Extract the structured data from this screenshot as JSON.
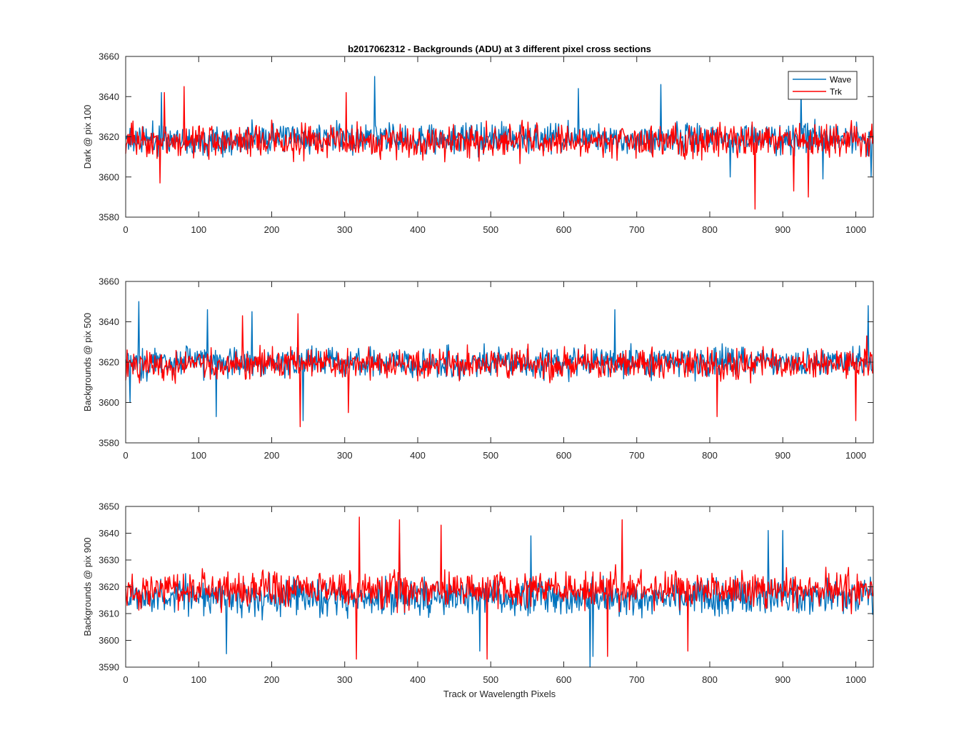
{
  "chart_data": [
    {
      "type": "line",
      "title": "b2017062312 - Backgrounds (ADU) at 3 different pixel cross sections",
      "xlabel": "",
      "ylabel": "Dark @ pix 100",
      "xlim": [
        0,
        1024
      ],
      "ylim": [
        3580,
        3660
      ],
      "xticks": [
        0,
        100,
        200,
        300,
        400,
        500,
        600,
        700,
        800,
        900,
        1000
      ],
      "yticks": [
        3580,
        3600,
        3620,
        3640,
        3660
      ],
      "grid": false,
      "legend": "top-right",
      "n_points": 1024,
      "series": [
        {
          "name": "Wave",
          "color": "#0072BD",
          "mean": 3619,
          "amplitude": 11,
          "seed": 11,
          "peaks": [
            [
              341,
              3650
            ],
            [
              733,
              3646
            ],
            [
              925,
              3645
            ],
            [
              620,
              3644
            ],
            [
              49,
              3642
            ]
          ],
          "dips": [
            [
              828,
              3600
            ],
            [
              955,
              3599
            ],
            [
              1021,
              3600
            ]
          ]
        },
        {
          "name": "Trk",
          "color": "#FF0000",
          "mean": 3618,
          "amplitude": 12,
          "seed": 23,
          "peaks": [
            [
              80,
              3645
            ],
            [
              53,
              3642
            ],
            [
              302,
              3642
            ]
          ],
          "dips": [
            [
              862,
              3584
            ],
            [
              935,
              3590
            ],
            [
              47,
              3597
            ],
            [
              915,
              3593
            ]
          ]
        }
      ]
    },
    {
      "type": "line",
      "title": "",
      "xlabel": "",
      "ylabel": "Backgrounds @ pix 500",
      "xlim": [
        0,
        1024
      ],
      "ylim": [
        3580,
        3660
      ],
      "xticks": [
        0,
        100,
        200,
        300,
        400,
        500,
        600,
        700,
        800,
        900,
        1000
      ],
      "yticks": [
        3580,
        3600,
        3620,
        3640,
        3660
      ],
      "grid": false,
      "n_points": 1024,
      "series": [
        {
          "name": "Wave",
          "color": "#0072BD",
          "mean": 3620,
          "amplitude": 11,
          "seed": 37,
          "peaks": [
            [
              18,
              3650
            ],
            [
              1017,
              3648
            ],
            [
              112,
              3646
            ],
            [
              670,
              3646
            ],
            [
              173,
              3645
            ]
          ],
          "dips": [
            [
              243,
              3591
            ],
            [
              124,
              3593
            ],
            [
              6,
              3600
            ]
          ]
        },
        {
          "name": "Trk",
          "color": "#FF0000",
          "mean": 3619,
          "amplitude": 11,
          "seed": 51,
          "peaks": [
            [
              236,
              3644
            ],
            [
              160,
              3643
            ],
            [
              1015,
              3633
            ]
          ],
          "dips": [
            [
              239,
              3588
            ],
            [
              1000,
              3591
            ],
            [
              305,
              3595
            ],
            [
              810,
              3593
            ]
          ]
        }
      ]
    },
    {
      "type": "line",
      "title": "",
      "xlabel": "Track or Wavelength Pixels",
      "ylabel": "Backgrounds @ pix 900",
      "xlim": [
        0,
        1024
      ],
      "ylim": [
        3590,
        3650
      ],
      "xticks": [
        0,
        100,
        200,
        300,
        400,
        500,
        600,
        700,
        800,
        900,
        1000
      ],
      "yticks": [
        3590,
        3600,
        3610,
        3620,
        3630,
        3640,
        3650
      ],
      "grid": false,
      "n_points": 1024,
      "series": [
        {
          "name": "Wave",
          "color": "#0072BD",
          "mean": 3616,
          "amplitude": 10,
          "seed": 67,
          "peaks": [
            [
              880,
              3641
            ],
            [
              900,
              3641
            ],
            [
              375,
              3640
            ],
            [
              555,
              3639
            ]
          ],
          "dips": [
            [
              636,
              3590
            ],
            [
              640,
              3594
            ],
            [
              138,
              3595
            ],
            [
              485,
              3596
            ]
          ]
        },
        {
          "name": "Trk",
          "color": "#FF0000",
          "mean": 3619,
          "amplitude": 10,
          "seed": 79,
          "peaks": [
            [
              320,
              3646
            ],
            [
              375,
              3645
            ],
            [
              680,
              3645
            ],
            [
              432,
              3643
            ]
          ],
          "dips": [
            [
              316,
              3593
            ],
            [
              495,
              3593
            ],
            [
              660,
              3594
            ],
            [
              770,
              3596
            ]
          ]
        }
      ]
    }
  ]
}
